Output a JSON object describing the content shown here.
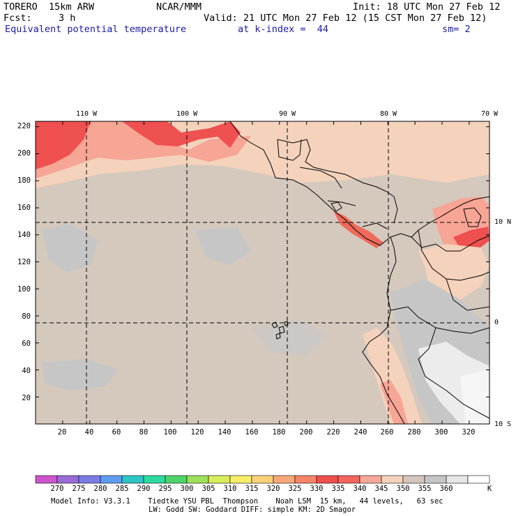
{
  "header": {
    "model": "TORERO  15km ARW",
    "center": "NCAR/MMM",
    "init": "Init: 18 UTC Mon 27 Feb 12",
    "fcst_label": "Fcst:",
    "fcst_value": "3 h",
    "valid": "Valid: 21 UTC Mon 27 Feb 12 (15 CST Mon 27 Feb 12)",
    "field": "Equivalent potential temperature",
    "level": "at k-index =  44",
    "smoothing": "sm= 2"
  },
  "chart_data": {
    "type": "heatmap",
    "title": "Equivalent potential temperature",
    "x_grid_ticks": [
      "20",
      "40",
      "60",
      "80",
      "100",
      "120",
      "140",
      "160",
      "180",
      "200",
      "220",
      "240",
      "260",
      "280",
      "300",
      "320"
    ],
    "y_grid_ticks": [
      "20",
      "40",
      "60",
      "80",
      "100",
      "120",
      "140",
      "160",
      "180",
      "200",
      "220"
    ],
    "xlim": [
      0,
      335
    ],
    "ylim": [
      0,
      224
    ],
    "longitude_labels": [
      "110 W",
      "100 W",
      "90 W",
      "80 W",
      "70 W"
    ],
    "latitude_labels": [
      "10 N",
      "0",
      "10 S"
    ],
    "colorbar": {
      "levels": [
        "270",
        "275",
        "280",
        "285",
        "290",
        "295",
        "300",
        "305",
        "310",
        "315",
        "320",
        "325",
        "330",
        "335",
        "340",
        "345",
        "350",
        "355",
        "360"
      ],
      "unit": "K",
      "colors": [
        "#cc55cc",
        "#9a6bd6",
        "#7b7be6",
        "#5f9cf0",
        "#2ec5c5",
        "#2ed9a0",
        "#4ed46a",
        "#9ee05a",
        "#d8ee5a",
        "#f6ee6a",
        "#fbd27a",
        "#f8a77a",
        "#f58468",
        "#ee4e4e",
        "#f3645e",
        "#f8a898",
        "#f4d2bc",
        "#d4c6bc",
        "#c6c6c6",
        "#e6e6e6",
        "#ffffff"
      ]
    },
    "field_colors": {
      "background": "#d5c8bd",
      "warm_band": "#f4d2bc",
      "hot": "#f7a595",
      "hottest": "#ef5050",
      "cool": "#c6c6c6",
      "coolest": "#ececec"
    }
  },
  "footer": {
    "line1": "Model Info: V3.3.1    Tiedtke YSU PBL  Thompson    Noah LSM  15 km,   44 levels,   63 sec",
    "line2": "LW: Godd SW: Goddard DIFF: simple KM: 2D Smagor"
  }
}
